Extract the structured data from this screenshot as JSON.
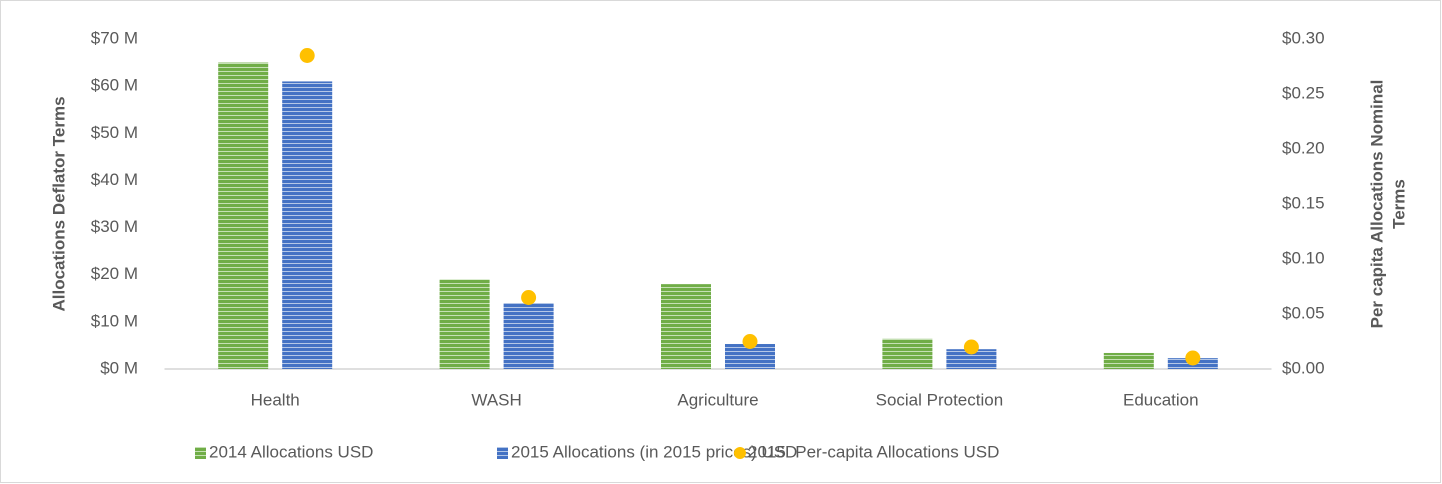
{
  "chart_data": {
    "type": "bar",
    "ylabel": "Allocations Deflator Terms",
    "y2label": [
      "Per capita Allocations Nominal",
      "Terms"
    ],
    "categories": [
      "Health",
      "WASH",
      "Agriculture",
      "Social Protection",
      "Education"
    ],
    "series": [
      {
        "name": "2014 Allocations USD",
        "type": "bar",
        "color": "#70ad47",
        "values": [
          65,
          19,
          18,
          6.4,
          3.4
        ]
      },
      {
        "name": "2015 Allocations (in 2015 prices) USD",
        "type": "bar",
        "color": "#4472c4",
        "values": [
          61,
          14,
          5.3,
          4.2,
          2.3
        ]
      },
      {
        "name": "2015  Per-capita Allocations USD",
        "type": "scatter",
        "axis": "y2",
        "color": "#ffc000",
        "values": [
          0.285,
          0.065,
          0.025,
          0.02,
          0.01
        ]
      }
    ],
    "ylim": [
      0,
      70
    ],
    "yticks": [
      {
        "value": 0,
        "label": "$0 M"
      },
      {
        "value": 10,
        "label": "$10 M"
      },
      {
        "value": 20,
        "label": "$20 M"
      },
      {
        "value": 30,
        "label": "$30 M"
      },
      {
        "value": 40,
        "label": "$40 M"
      },
      {
        "value": 50,
        "label": "$50 M"
      },
      {
        "value": 60,
        "label": "$60 M"
      },
      {
        "value": 70,
        "label": "$70 M"
      }
    ],
    "y2lim": [
      0,
      0.3
    ],
    "y2ticks": [
      {
        "value": 0,
        "label": "$0.00"
      },
      {
        "value": 0.05,
        "label": "$0.05"
      },
      {
        "value": 0.1,
        "label": "$0.10"
      },
      {
        "value": 0.15,
        "label": "$0.15"
      },
      {
        "value": 0.2,
        "label": "$0.20"
      },
      {
        "value": 0.25,
        "label": "$0.25"
      },
      {
        "value": 0.3,
        "label": "$0.30"
      }
    ],
    "grid": false,
    "legend": "bottom"
  }
}
